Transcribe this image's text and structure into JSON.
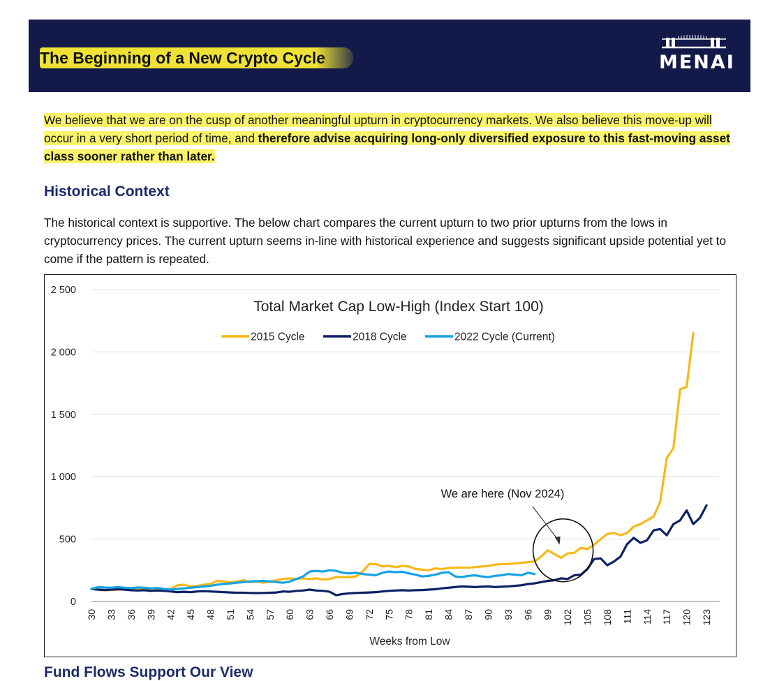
{
  "header": {
    "title": "The Beginning of a New Crypto Cycle",
    "logo_text": "MENAI",
    "colors": {
      "banner": "#131a4a",
      "highlight": "#f6e834",
      "logo": "#ffffff"
    }
  },
  "intro": {
    "part1": "We believe that we are on the cusp of another meaningful upturn in cryptocurrency markets. We also believe this move-up will occur in a very short period of time, and ",
    "part2_bold": "therefore advise acquiring long-only diversified exposure to this fast-moving asset class sooner rather than later."
  },
  "historical_context": {
    "heading": "Historical Context",
    "text": "The historical context is supportive. The below chart compares the current upturn to two prior upturns from the lows in cryptocurrency prices. The current upturn seems in-line with historical experience and suggests significant upside potential yet to come if the pattern is repeated."
  },
  "next_section": {
    "heading": "Fund Flows Support Our View"
  },
  "chart_data": {
    "type": "line",
    "title": "Total Market Cap Low-High (Index Start 100)",
    "xlabel": "Weeks from Low",
    "ylabel": "",
    "x_start": 30,
    "x_end": 125,
    "xlim": [
      30,
      125
    ],
    "ylim": [
      0,
      2500
    ],
    "x_ticks": [
      30,
      33,
      36,
      39,
      42,
      45,
      48,
      51,
      54,
      57,
      60,
      63,
      66,
      69,
      72,
      75,
      78,
      81,
      84,
      87,
      90,
      93,
      96,
      99,
      102,
      105,
      108,
      111,
      114,
      117,
      120,
      123
    ],
    "y_ticks": [
      0,
      500,
      1000,
      1500,
      2000,
      2500
    ],
    "y_tick_labels": [
      "0",
      "500",
      "1 000",
      "1 500",
      "2 000",
      "2 500"
    ],
    "grid": "horizontal",
    "legend_position": "top-center",
    "series": [
      {
        "name": "2015 Cycle",
        "color": "#f7b918",
        "values": [
          100,
          95,
          90,
          92,
          95,
          98,
          95,
          96,
          100,
          98,
          97,
          100,
          100,
          130,
          135,
          120,
          125,
          135,
          140,
          165,
          160,
          155,
          160,
          170,
          155,
          160,
          150,
          160,
          170,
          180,
          185,
          180,
          185,
          180,
          185,
          175,
          180,
          195,
          195,
          195,
          200,
          240,
          300,
          300,
          280,
          285,
          275,
          285,
          280,
          260,
          255,
          250,
          265,
          260,
          268,
          270,
          272,
          270,
          275,
          280,
          285,
          295,
          300,
          300,
          305,
          310,
          315,
          320,
          360,
          410,
          380,
          350,
          385,
          390,
          430,
          420,
          455,
          500,
          540,
          550,
          530,
          550,
          600,
          620,
          650,
          680,
          800,
          1150,
          1230,
          1700,
          1720,
          2150
        ]
      },
      {
        "name": "2018 Cycle",
        "color": "#0d2164",
        "values": [
          100,
          95,
          92,
          95,
          98,
          95,
          90,
          88,
          90,
          85,
          88,
          85,
          80,
          75,
          78,
          75,
          80,
          82,
          80,
          78,
          75,
          72,
          70,
          70,
          68,
          67,
          68,
          70,
          72,
          80,
          78,
          85,
          88,
          95,
          88,
          85,
          78,
          50,
          60,
          65,
          68,
          70,
          72,
          75,
          80,
          85,
          88,
          90,
          88,
          90,
          92,
          95,
          98,
          105,
          110,
          115,
          120,
          118,
          115,
          118,
          120,
          115,
          118,
          120,
          125,
          130,
          140,
          145,
          155,
          165,
          170,
          185,
          180,
          210,
          215,
          260,
          340,
          345,
          290,
          320,
          360,
          460,
          510,
          470,
          490,
          570,
          580,
          530,
          620,
          650,
          730,
          620,
          670,
          770
        ]
      },
      {
        "name": "2022 Cycle (Current)",
        "color": "#16a3e6",
        "values": [
          100,
          115,
          112,
          110,
          115,
          110,
          108,
          112,
          110,
          105,
          108,
          100,
          95,
          100,
          105,
          110,
          115,
          120,
          125,
          135,
          140,
          145,
          150,
          155,
          160,
          162,
          165,
          160,
          155,
          150,
          160,
          180,
          200,
          240,
          245,
          240,
          250,
          245,
          230,
          225,
          230,
          220,
          215,
          210,
          230,
          240,
          235,
          238,
          225,
          215,
          200,
          205,
          215,
          230,
          235,
          200,
          195,
          205,
          210,
          200,
          195,
          205,
          210,
          220,
          215,
          210,
          230,
          220
        ]
      }
    ],
    "annotation": {
      "text": "We are here (Nov 2024)",
      "x": 101,
      "y": 270
    }
  }
}
